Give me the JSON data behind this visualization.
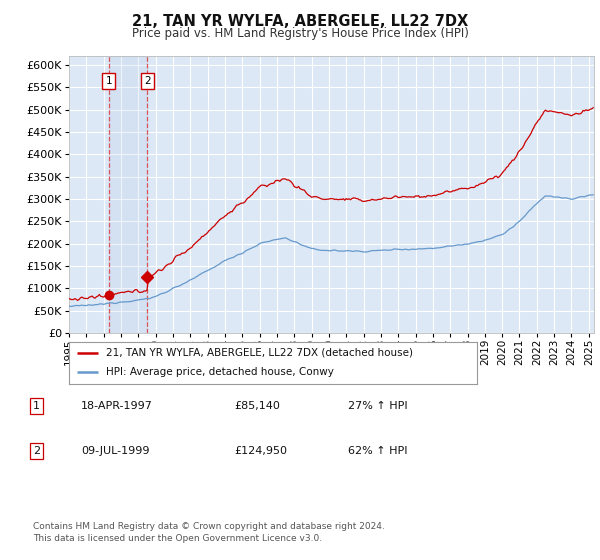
{
  "title": "21, TAN YR WYLFA, ABERGELE, LL22 7DX",
  "subtitle": "Price paid vs. HM Land Registry's House Price Index (HPI)",
  "ylim": [
    0,
    620000
  ],
  "yticks": [
    0,
    50000,
    100000,
    150000,
    200000,
    250000,
    300000,
    350000,
    400000,
    450000,
    500000,
    550000,
    600000
  ],
  "xlim_start": 1995.0,
  "xlim_end": 2025.3,
  "line1_color": "#cc0000",
  "line2_color": "#6699cc",
  "background_color": "#dce8f5",
  "grid_color": "#ffffff",
  "transaction1_date": 1997.29,
  "transaction1_price": 85140,
  "transaction2_date": 1999.52,
  "transaction2_price": 124950,
  "legend_line1": "21, TAN YR WYLFA, ABERGELE, LL22 7DX (detached house)",
  "legend_line2": "HPI: Average price, detached house, Conwy",
  "table_row1_date": "18-APR-1997",
  "table_row1_price": "£85,140",
  "table_row1_hpi": "27% ↑ HPI",
  "table_row2_date": "09-JUL-1999",
  "table_row2_price": "£124,950",
  "table_row2_hpi": "62% ↑ HPI",
  "footnote": "Contains HM Land Registry data © Crown copyright and database right 2024.\nThis data is licensed under the Open Government Licence v3.0."
}
